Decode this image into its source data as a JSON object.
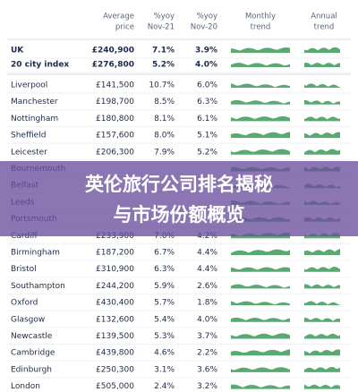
{
  "table": {
    "headers": [
      [
        "Average",
        "price"
      ],
      [
        "%yoy",
        "Nov-21"
      ],
      [
        "%yoy",
        "Nov-20"
      ],
      [
        "Monthly",
        "trend"
      ],
      [
        "Annual",
        "trend"
      ]
    ],
    "rows": [
      [
        "UK",
        "£240,900",
        "7.1%",
        "3.9%"
      ],
      [
        "20 city index",
        "£276,800",
        "5.2%",
        "4.0%"
      ],
      [
        "Liverpool",
        "£141,500",
        "10.7%",
        "6.0%"
      ],
      [
        "Manchester",
        "£198,700",
        "8.5%",
        "6.3%"
      ],
      [
        "Nottingham",
        "£180,800",
        "8.1%",
        "6.1%"
      ],
      [
        "Sheffield",
        "£157,600",
        "8.0%",
        "5.1%"
      ],
      [
        "Leicester",
        "£206,300",
        "7.9%",
        "5.2%"
      ],
      [
        "Bournemouth"
      ],
      [
        "Belfast"
      ],
      [
        "Leeds"
      ],
      [
        "Portsmouth"
      ],
      [
        "Cardiff",
        "£233,900",
        "7.0%",
        "4.2%"
      ],
      [
        "Birmingham",
        "£187,200",
        "6.7%",
        "4.4%"
      ],
      [
        "Bristol",
        "£310,900",
        "6.3%",
        "4.4%"
      ],
      [
        "Southampton",
        "£244,200",
        "5.9%",
        "2.6%"
      ],
      [
        "Oxford",
        "£430,400",
        "5.7%",
        "1.8%"
      ],
      [
        "Glasgow",
        "£132,600",
        "5.4%",
        "4.0%"
      ],
      [
        "Newcastle",
        "£139,500",
        "5.3%",
        "3.7%"
      ],
      [
        "Cambridge",
        "£439,800",
        "4.6%",
        "2.2%"
      ],
      [
        "Edinburgh",
        "£250,300",
        "3.1%",
        "3.6%"
      ],
      [
        "London",
        "£505,000",
        "2.4%",
        "3.2%"
      ]
    ]
  },
  "banner": {
    "lines": [
      "英伦旅行公司排名揭秘",
      "与市场份额概览"
    ]
  }
}
